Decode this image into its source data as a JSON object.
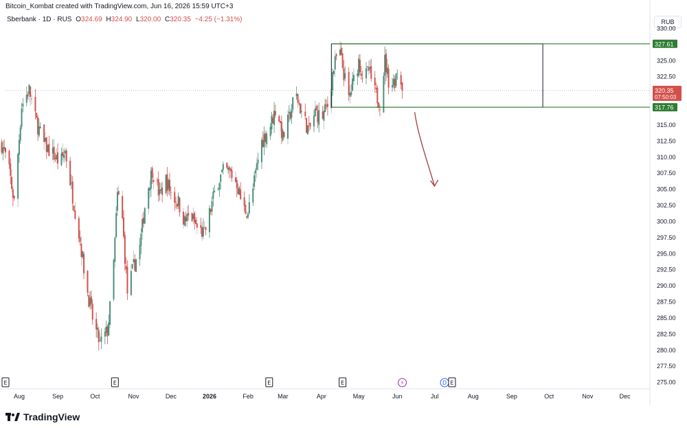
{
  "attribution": "Bitcoin_Kombat created with TradingView.com, Jun 16, 2026 15:59 UTC+3",
  "legend": {
    "symbol": "Sberbank · 1D · RUS",
    "o_label": "O",
    "o": "324.69",
    "h_label": "H",
    "h": "324.90",
    "l_label": "L",
    "l": "320.00",
    "c_label": "C",
    "c": "320.35",
    "change": "−4.25 (−1.31%)"
  },
  "currency": "RUB",
  "brand": "TradingView",
  "colors": {
    "up": "#4a8f78",
    "down": "#d2504b",
    "box": "#131722",
    "level": "#2e7d32",
    "arrow": "#a03c3c",
    "wick_gray": "#b2b5be"
  },
  "chart_data": {
    "type": "candlestick",
    "title": "Sberbank · 1D · RUS",
    "ylim": [
      274,
      332.5
    ],
    "xlim": [
      "2025-08-01",
      "2026-12-31"
    ],
    "y_ticks": [
      "330.00",
      "327.50",
      "325.00",
      "322.50",
      "320.00",
      "317.50",
      "315.00",
      "312.50",
      "310.00",
      "307.50",
      "305.00",
      "302.50",
      "300.00",
      "297.50",
      "295.00",
      "292.50",
      "290.00",
      "287.50",
      "285.00",
      "282.50",
      "280.00",
      "277.50",
      "275.00"
    ],
    "x_ticks": [
      {
        "label": "Aug",
        "date": "2025-08-01"
      },
      {
        "label": "Sep",
        "date": "2025-09-01"
      },
      {
        "label": "Oct",
        "date": "2025-10-01"
      },
      {
        "label": "Nov",
        "date": "2025-11-01"
      },
      {
        "label": "Dec",
        "date": "2025-12-01"
      },
      {
        "label": "2026",
        "date": "2026-01-01"
      },
      {
        "label": "Feb",
        "date": "2026-02-01"
      },
      {
        "label": "Mar",
        "date": "2026-03-01"
      },
      {
        "label": "Apr",
        "date": "2026-04-01"
      },
      {
        "label": "May",
        "date": "2026-05-01"
      },
      {
        "label": "Jun",
        "date": "2026-06-01"
      },
      {
        "label": "Jul",
        "date": "2026-07-01"
      },
      {
        "label": "Aug",
        "date": "2026-08-01"
      },
      {
        "label": "Sep",
        "date": "2026-09-01"
      },
      {
        "label": "Oct",
        "date": "2026-10-01"
      },
      {
        "label": "Nov",
        "date": "2026-11-01"
      },
      {
        "label": "Dec",
        "date": "2026-12-01"
      }
    ],
    "price_path": [
      {
        "date": "2025-07-29",
        "price": 312.0
      },
      {
        "date": "2025-08-03",
        "price": 309.0
      },
      {
        "date": "2025-08-08",
        "price": 303.0
      },
      {
        "date": "2025-08-14",
        "price": 318.0
      },
      {
        "date": "2025-08-20",
        "price": 320.5
      },
      {
        "date": "2025-08-25",
        "price": 316.0
      },
      {
        "date": "2025-09-01",
        "price": 312.0
      },
      {
        "date": "2025-09-08",
        "price": 310.5
      },
      {
        "date": "2025-09-14",
        "price": 309.0
      },
      {
        "date": "2025-09-18",
        "price": 311.0
      },
      {
        "date": "2025-09-24",
        "price": 304.0
      },
      {
        "date": "2025-09-30",
        "price": 297.0
      },
      {
        "date": "2025-10-05",
        "price": 290.0
      },
      {
        "date": "2025-10-11",
        "price": 284.0
      },
      {
        "date": "2025-10-16",
        "price": 281.0
      },
      {
        "date": "2025-10-22",
        "price": 283.0
      },
      {
        "date": "2025-10-26",
        "price": 290.0
      },
      {
        "date": "2025-10-30",
        "price": 304.0
      },
      {
        "date": "2025-11-02",
        "price": 303.0
      },
      {
        "date": "2025-11-07",
        "price": 289.0
      },
      {
        "date": "2025-11-12",
        "price": 293.0
      },
      {
        "date": "2025-11-17",
        "price": 296.0
      },
      {
        "date": "2025-11-22",
        "price": 304.0
      },
      {
        "date": "2025-11-27",
        "price": 308.0
      },
      {
        "date": "2025-12-03",
        "price": 304.0
      },
      {
        "date": "2025-12-08",
        "price": 306.5
      },
      {
        "date": "2025-12-13",
        "price": 304.0
      },
      {
        "date": "2025-12-18",
        "price": 303.0
      },
      {
        "date": "2025-12-23",
        "price": 300.0
      },
      {
        "date": "2025-12-28",
        "price": 301.0
      },
      {
        "date": "2026-01-02",
        "price": 299.0
      },
      {
        "date": "2026-01-08",
        "price": 298.0
      },
      {
        "date": "2026-01-13",
        "price": 302.0
      },
      {
        "date": "2026-01-18",
        "price": 306.0
      },
      {
        "date": "2026-01-24",
        "price": 308.0
      },
      {
        "date": "2026-01-29",
        "price": 307.5
      },
      {
        "date": "2026-02-03",
        "price": 306.0
      },
      {
        "date": "2026-02-08",
        "price": 302.0
      },
      {
        "date": "2026-02-12",
        "price": 301.5
      },
      {
        "date": "2026-02-16",
        "price": 305.0
      },
      {
        "date": "2026-02-22",
        "price": 312.0
      },
      {
        "date": "2026-03-02",
        "price": 315.0
      },
      {
        "date": "2026-03-07",
        "price": 318.0
      },
      {
        "date": "2026-03-12",
        "price": 313.0
      },
      {
        "date": "2026-03-17",
        "price": 316.0
      },
      {
        "date": "2026-03-22",
        "price": 320.0
      },
      {
        "date": "2026-03-27",
        "price": 317.0
      },
      {
        "date": "2026-04-02",
        "price": 314.0
      },
      {
        "date": "2026-04-07",
        "price": 317.0
      },
      {
        "date": "2026-04-12",
        "price": 316.0
      },
      {
        "date": "2026-04-17",
        "price": 318.0
      },
      {
        "date": "2026-04-21",
        "price": 323.0
      },
      {
        "date": "2026-04-26",
        "price": 327.0
      },
      {
        "date": "2026-04-30",
        "price": 323.0
      },
      {
        "date": "2026-05-04",
        "price": 319.0
      },
      {
        "date": "2026-05-08",
        "price": 322.0
      },
      {
        "date": "2026-05-12",
        "price": 325.0
      },
      {
        "date": "2026-05-16",
        "price": 322.0
      },
      {
        "date": "2026-05-20",
        "price": 323.5
      },
      {
        "date": "2026-05-25",
        "price": 320.0
      },
      {
        "date": "2026-05-29",
        "price": 318.5
      },
      {
        "date": "2026-06-02",
        "price": 325.0
      },
      {
        "date": "2026-06-06",
        "price": 321.0
      },
      {
        "date": "2026-06-10",
        "price": 322.0
      },
      {
        "date": "2026-06-13",
        "price": 324.5
      },
      {
        "date": "2026-06-16",
        "price": 320.35
      }
    ],
    "range_box": {
      "from": "2026-04-20",
      "to": "2026-10-07",
      "top": 327.61,
      "bottom": 317.76
    },
    "levels": [
      {
        "price": 327.61,
        "label": "327.61"
      },
      {
        "price": 317.76,
        "label": "317.76"
      }
    ],
    "current_price": {
      "price": 320.35,
      "label": "320.35",
      "countdown": "07:50:03"
    },
    "arrow": {
      "from_date": "2026-06-26",
      "from_price": 317.0,
      "to_date": "2026-07-12",
      "to_price": 305.5
    },
    "event_markers": [
      {
        "date": "2025-08-01",
        "glyph": "E"
      },
      {
        "date": "2025-10-28",
        "glyph": "E"
      },
      {
        "date": "2026-03-01",
        "glyph": "E"
      },
      {
        "date": "2026-04-29",
        "glyph": "E"
      },
      {
        "date": "2026-06-16",
        "glyph": "⚡"
      },
      {
        "date": "2026-07-20",
        "glyph": "D"
      },
      {
        "date": "2026-07-26",
        "glyph": "E"
      }
    ]
  }
}
